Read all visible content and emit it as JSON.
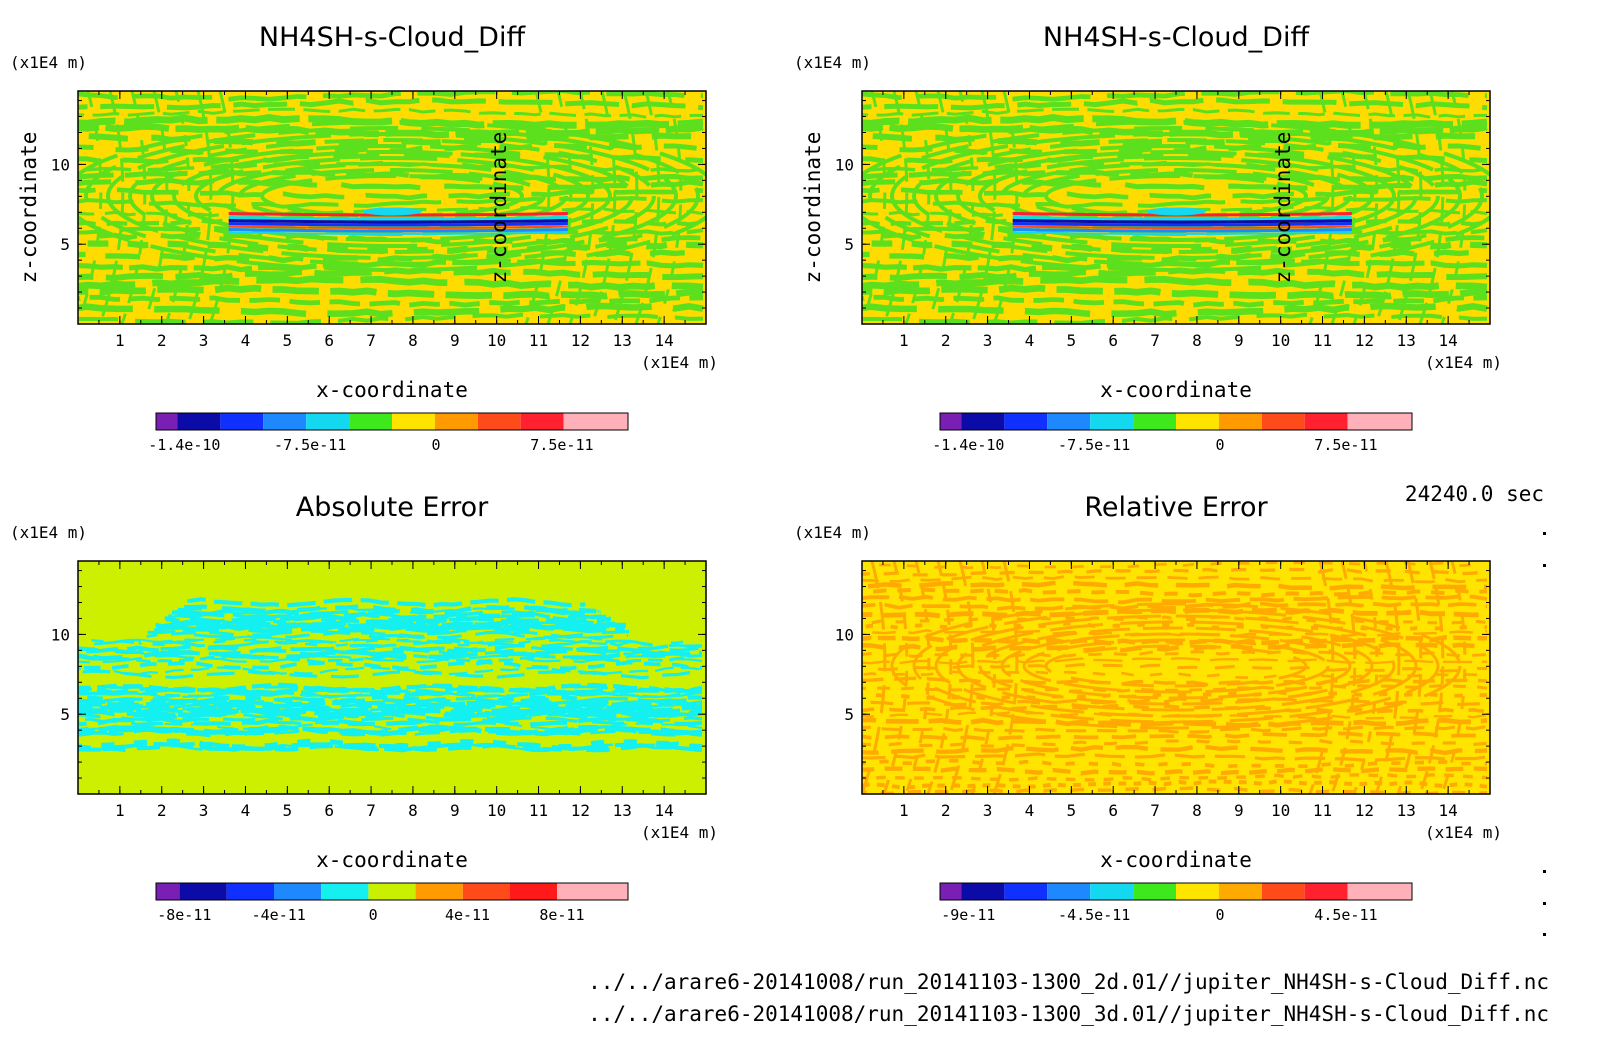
{
  "chart_data": [
    {
      "type": "heatmap",
      "title": "NH4SH-s-Cloud_Diff",
      "xlabel": "x-coordinate",
      "ylabel": "z-coordinate",
      "x_unit": "(x1E4 m)",
      "y_unit": "(x1E4 m)",
      "xlim": [
        0,
        15
      ],
      "ylim": [
        0,
        14.6
      ],
      "xticks": [
        1,
        2,
        3,
        4,
        5,
        6,
        7,
        8,
        9,
        10,
        11,
        12,
        13,
        14
      ],
      "yticks": [
        5,
        10
      ],
      "colorbar": {
        "tick_labels": [
          "-1.4e-10",
          "-7.5e-11",
          "0",
          "7.5e-11"
        ],
        "colors": [
          "#7a1fb4",
          "#0b0ba8",
          "#1030ff",
          "#1e88ff",
          "#14d8f0",
          "#3de81c",
          "#ffe400",
          "#ff9a00",
          "#ff4a1a",
          "#ff2030",
          "#ffb0b8"
        ]
      },
      "field": "striped",
      "colors_used": {
        "background": "#ffdc00",
        "stripe": "#5ce01e"
      }
    },
    {
      "type": "heatmap",
      "title": "NH4SH-s-Cloud_Diff",
      "xlabel": "x-coordinate",
      "ylabel": "z-coordinate",
      "x_unit": "(x1E4 m)",
      "y_unit": "(x1E4 m)",
      "xlim": [
        0,
        15
      ],
      "ylim": [
        0,
        14.6
      ],
      "xticks": [
        1,
        2,
        3,
        4,
        5,
        6,
        7,
        8,
        9,
        10,
        11,
        12,
        13,
        14
      ],
      "yticks": [
        5,
        10
      ],
      "colorbar": {
        "tick_labels": [
          "-1.4e-10",
          "-7.5e-11",
          "0",
          "7.5e-11"
        ],
        "colors": [
          "#7a1fb4",
          "#0b0ba8",
          "#1030ff",
          "#1e88ff",
          "#14d8f0",
          "#3de81c",
          "#ffe400",
          "#ff9a00",
          "#ff4a1a",
          "#ff2030",
          "#ffb0b8"
        ]
      },
      "field": "striped",
      "colors_used": {
        "background": "#ffdc00",
        "stripe": "#5ce01e"
      }
    },
    {
      "type": "heatmap",
      "title": "Absolute Error",
      "xlabel": "x-coordinate",
      "ylabel": "z-coordinate",
      "x_unit": "(x1E4 m)",
      "y_unit": "(x1E4 m)",
      "xlim": [
        0,
        15
      ],
      "ylim": [
        0,
        14.6
      ],
      "xticks": [
        1,
        2,
        3,
        4,
        5,
        6,
        7,
        8,
        9,
        10,
        11,
        12,
        13,
        14
      ],
      "yticks": [
        5,
        10
      ],
      "colorbar": {
        "tick_labels": [
          "-8e-11",
          "-4e-11",
          "0",
          "4e-11",
          "8e-11"
        ],
        "colors": [
          "#7a1fb4",
          "#0b0ba8",
          "#1030ff",
          "#1e88ff",
          "#14f0f0",
          "#c8f000",
          "#ff9a00",
          "#ff4a1a",
          "#ff1a1a",
          "#ffb0b8"
        ]
      },
      "field": "absolute",
      "colors_used": {
        "background": "#ccf000",
        "stripe": "#14f0f0"
      }
    },
    {
      "type": "heatmap",
      "title": "Relative Error",
      "xlabel": "x-coordinate",
      "ylabel": "z-coordinate",
      "x_unit": "(x1E4 m)",
      "y_unit": "(x1E4 m)",
      "xlim": [
        0,
        15
      ],
      "ylim": [
        0,
        14.6
      ],
      "xticks": [
        1,
        2,
        3,
        4,
        5,
        6,
        7,
        8,
        9,
        10,
        11,
        12,
        13,
        14
      ],
      "yticks": [
        5,
        10
      ],
      "colorbar": {
        "tick_labels": [
          "-9e-11",
          "-4.5e-11",
          "0",
          "4.5e-11"
        ],
        "colors": [
          "#7a1fb4",
          "#0b0ba8",
          "#1030ff",
          "#1e88ff",
          "#14d8f0",
          "#3de81c",
          "#ffe400",
          "#ffaa00",
          "#ff4a1a",
          "#ff2030",
          "#ffb0b8"
        ]
      },
      "field": "relative",
      "colors_used": {
        "background": "#ffe400",
        "stripe": "#ffaa00"
      }
    }
  ],
  "time_label": "24240.0 sec",
  "footer": {
    "line1": "../../arare6-20141008/run_20141103-1300_2d.01//jupiter_NH4SH-s-Cloud_Diff.nc",
    "line2": "../../arare6-20141008/run_20141103-1300_3d.01//jupiter_NH4SH-s-Cloud_Diff.nc"
  }
}
